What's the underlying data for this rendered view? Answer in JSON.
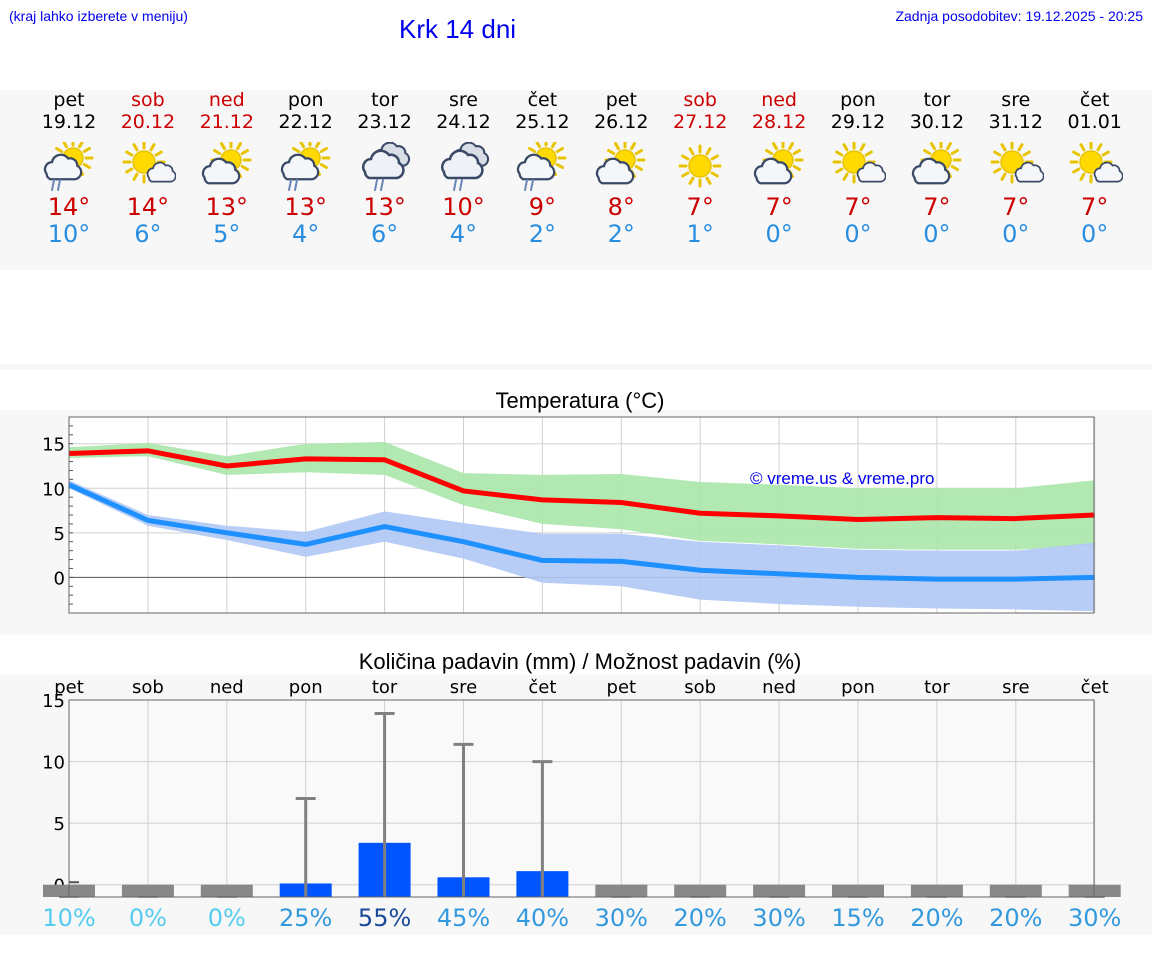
{
  "header": {
    "hint": "(kraj lahko izberete v meniju)",
    "title": "Krk 14 dni",
    "updated": "Zadnja posodobitev: 19.12.2025 - 20:25"
  },
  "forecast": {
    "days": [
      {
        "day": "pet",
        "date": "19.12",
        "weekend": false,
        "icon": "sun-cloud-rain-icon",
        "max": "14°",
        "min": "10°"
      },
      {
        "day": "sob",
        "date": "20.12",
        "weekend": true,
        "icon": "sun-small-cloud-icon",
        "max": "14°",
        "min": "6°"
      },
      {
        "day": "ned",
        "date": "21.12",
        "weekend": true,
        "icon": "sun-cloud-icon",
        "max": "13°",
        "min": "5°"
      },
      {
        "day": "pon",
        "date": "22.12",
        "weekend": false,
        "icon": "sun-cloud-rain-icon",
        "max": "13°",
        "min": "4°"
      },
      {
        "day": "tor",
        "date": "23.12",
        "weekend": false,
        "icon": "cloud-rain-icon",
        "max": "13°",
        "min": "6°"
      },
      {
        "day": "sre",
        "date": "24.12",
        "weekend": false,
        "icon": "cloud-rain-icon",
        "max": "10°",
        "min": "4°"
      },
      {
        "day": "čet",
        "date": "25.12",
        "weekend": false,
        "icon": "sun-cloud-rain-icon",
        "max": "9°",
        "min": "2°"
      },
      {
        "day": "pet",
        "date": "26.12",
        "weekend": false,
        "icon": "sun-cloud-icon",
        "max": "8°",
        "min": "2°"
      },
      {
        "day": "sob",
        "date": "27.12",
        "weekend": true,
        "icon": "sun-icon",
        "max": "7°",
        "min": "1°"
      },
      {
        "day": "ned",
        "date": "28.12",
        "weekend": true,
        "icon": "sun-cloud-icon",
        "max": "7°",
        "min": "0°"
      },
      {
        "day": "pon",
        "date": "29.12",
        "weekend": false,
        "icon": "sun-small-cloud-icon",
        "max": "7°",
        "min": "0°"
      },
      {
        "day": "tor",
        "date": "30.12",
        "weekend": false,
        "icon": "sun-cloud-icon",
        "max": "7°",
        "min": "0°"
      },
      {
        "day": "sre",
        "date": "31.12",
        "weekend": false,
        "icon": "sun-small-cloud-icon",
        "max": "7°",
        "min": "0°"
      },
      {
        "day": "čet",
        "date": "01.01",
        "weekend": false,
        "icon": "sun-small-cloud-icon",
        "max": "7°",
        "min": "0°"
      }
    ]
  },
  "chart_data": [
    {
      "type": "line",
      "title": "Temperatura (°C)",
      "watermark": "© vreme.us & vreme.pro",
      "x": [
        0,
        1,
        2,
        3,
        4,
        5,
        6,
        7,
        8,
        9,
        10,
        11,
        12,
        13
      ],
      "ylim": [
        -4,
        18
      ],
      "yticks": [
        0,
        5,
        10,
        15
      ],
      "grid": true,
      "series": [
        {
          "name": "max",
          "color": "#ff0000",
          "values": [
            13.9,
            14.2,
            12.5,
            13.3,
            13.2,
            9.7,
            8.7,
            8.4,
            7.2,
            6.9,
            6.5,
            6.7,
            6.6,
            7.0
          ]
        },
        {
          "name": "min",
          "color": "#1e90ff",
          "values": [
            10.4,
            6.4,
            5.0,
            3.7,
            5.7,
            4.0,
            1.9,
            1.8,
            0.8,
            0.4,
            0.0,
            -0.2,
            -0.2,
            0.0
          ]
        }
      ],
      "bands": [
        {
          "name": "max-range",
          "color": "#aae6aa",
          "upper": [
            14.6,
            15.1,
            13.6,
            15.0,
            15.2,
            11.7,
            11.5,
            11.6,
            10.7,
            10.4,
            10.0,
            10.0,
            10.0,
            10.9
          ],
          "lower": [
            13.4,
            13.6,
            11.5,
            11.8,
            11.5,
            8.1,
            6.0,
            5.4,
            4.1,
            3.7,
            3.2,
            3.1,
            3.1,
            3.6
          ]
        },
        {
          "name": "min-range",
          "color": "#b0c8f4",
          "upper": [
            10.9,
            7.0,
            5.8,
            5.1,
            7.4,
            6.1,
            4.9,
            4.9,
            4.0,
            3.6,
            3.1,
            3.0,
            3.0,
            3.9
          ],
          "lower": [
            10.0,
            5.8,
            4.2,
            2.3,
            4.0,
            2.1,
            -0.6,
            -1.0,
            -2.5,
            -3.0,
            -3.3,
            -3.5,
            -3.6,
            -3.8
          ]
        }
      ]
    },
    {
      "type": "bar",
      "title": "Količina padavin (mm) / Možnost padavin (%)",
      "categories": [
        "pet",
        "sob",
        "ned",
        "pon",
        "tor",
        "sre",
        "čet",
        "pet",
        "sob",
        "ned",
        "pon",
        "tor",
        "sre",
        "čet"
      ],
      "ylim": [
        -1,
        15
      ],
      "yticks": [
        0,
        5,
        10,
        15
      ],
      "grid": true,
      "series": [
        {
          "name": "precipitation_mm",
          "color": "#0055ff",
          "values": [
            0,
            0,
            0,
            0.1,
            3.4,
            0.6,
            1.1,
            0,
            0,
            0,
            0,
            0,
            0,
            0
          ]
        },
        {
          "name": "max_precipitation_mm",
          "color": "#808080",
          "values": [
            0,
            0,
            0,
            7.0,
            13.9,
            11.4,
            10.0,
            0,
            0,
            0,
            0,
            0,
            0,
            0
          ]
        }
      ],
      "probability_labels": [
        "10%",
        "0%",
        "0%",
        "25%",
        "55%",
        "45%",
        "40%",
        "30%",
        "20%",
        "30%",
        "15%",
        "20%",
        "20%",
        "30%"
      ],
      "probability_colors": [
        "#55ccee",
        "#55ccee",
        "#55ccee",
        "#3399dd",
        "#1a4a99",
        "#3399dd",
        "#3399dd",
        "#3399dd",
        "#3399dd",
        "#3399dd",
        "#3399dd",
        "#3399dd",
        "#3399dd",
        "#3399dd"
      ]
    }
  ]
}
